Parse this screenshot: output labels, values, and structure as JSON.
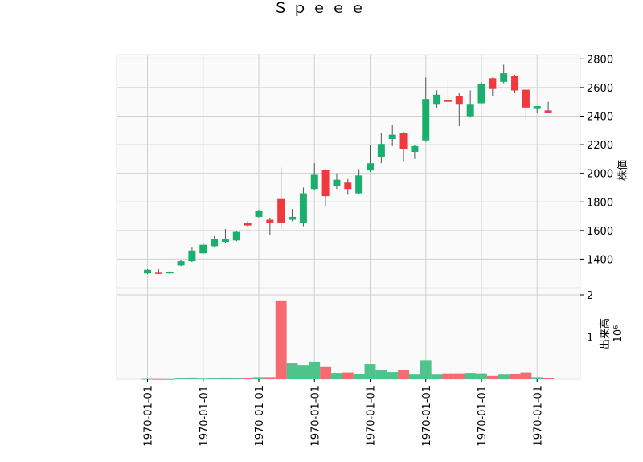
{
  "chart_data": {
    "type": "candlestick",
    "title": "Ｓｐｅｅｅ",
    "price_ylabel": "株価",
    "volume_ylabel": "出来高",
    "volume_scale_label": "10⁶",
    "price_ylim": [
      1200,
      2830
    ],
    "price_yticks": [
      "1400",
      "1600",
      "1800",
      "2000",
      "2200",
      "2400",
      "2600",
      "2800"
    ],
    "price_ytick_values": [
      1400,
      1600,
      1800,
      2000,
      2200,
      2400,
      2600,
      2800
    ],
    "volume_ylim": [
      0,
      2.0
    ],
    "volume_yticks": [
      "1",
      "2"
    ],
    "volume_ytick_values": [
      1,
      2
    ],
    "x_tick_labels": [
      "1970-01-01",
      "1970-01-01",
      "1970-01-01",
      "1970-01-01",
      "1970-01-01",
      "1970-01-01",
      "1970-01-01",
      "1970-01-01"
    ],
    "x_tick_indices": [
      0,
      5,
      10,
      15,
      20,
      25,
      30,
      35
    ],
    "colors": {
      "up": "#1aaf6c",
      "down": "#f0383e",
      "up_volume": "#4dc48c",
      "down_volume": "#f56b70",
      "grid": "#d0d0d0",
      "background": "#fafafa"
    },
    "candles": [
      {
        "o": 1300,
        "h": 1330,
        "l": 1295,
        "c": 1325,
        "v": 0.01
      },
      {
        "o": 1305,
        "h": 1330,
        "l": 1295,
        "c": 1300,
        "v": 0.005
      },
      {
        "o": 1300,
        "h": 1315,
        "l": 1295,
        "c": 1310,
        "v": 0.005
      },
      {
        "o": 1355,
        "h": 1395,
        "l": 1350,
        "c": 1385,
        "v": 0.03
      },
      {
        "o": 1385,
        "h": 1480,
        "l": 1380,
        "c": 1460,
        "v": 0.04
      },
      {
        "o": 1440,
        "h": 1510,
        "l": 1435,
        "c": 1500,
        "v": 0.015
      },
      {
        "o": 1490,
        "h": 1560,
        "l": 1485,
        "c": 1540,
        "v": 0.03
      },
      {
        "o": 1520,
        "h": 1610,
        "l": 1510,
        "c": 1540,
        "v": 0.04
      },
      {
        "o": 1530,
        "h": 1595,
        "l": 1525,
        "c": 1590,
        "v": 0.02
      },
      {
        "o": 1655,
        "h": 1665,
        "l": 1625,
        "c": 1635,
        "v": 0.04
      },
      {
        "o": 1695,
        "h": 1745,
        "l": 1690,
        "c": 1740,
        "v": 0.05
      },
      {
        "o": 1675,
        "h": 1690,
        "l": 1570,
        "c": 1650,
        "v": 0.05
      },
      {
        "o": 1820,
        "h": 2040,
        "l": 1610,
        "c": 1650,
        "v": 1.87
      },
      {
        "o": 1675,
        "h": 1750,
        "l": 1665,
        "c": 1695,
        "v": 0.38
      },
      {
        "o": 1650,
        "h": 1900,
        "l": 1630,
        "c": 1860,
        "v": 0.34
      },
      {
        "o": 1890,
        "h": 2070,
        "l": 1880,
        "c": 1990,
        "v": 0.42
      },
      {
        "o": 2025,
        "h": 2030,
        "l": 1770,
        "c": 1840,
        "v": 0.29
      },
      {
        "o": 1910,
        "h": 2000,
        "l": 1890,
        "c": 1955,
        "v": 0.15
      },
      {
        "o": 1935,
        "h": 1960,
        "l": 1850,
        "c": 1890,
        "v": 0.16
      },
      {
        "o": 1860,
        "h": 2030,
        "l": 1855,
        "c": 1985,
        "v": 0.13
      },
      {
        "o": 2020,
        "h": 2200,
        "l": 2010,
        "c": 2070,
        "v": 0.36
      },
      {
        "o": 2115,
        "h": 2280,
        "l": 2070,
        "c": 2205,
        "v": 0.22
      },
      {
        "o": 2240,
        "h": 2340,
        "l": 2190,
        "c": 2270,
        "v": 0.17
      },
      {
        "o": 2280,
        "h": 2290,
        "l": 2080,
        "c": 2170,
        "v": 0.22
      },
      {
        "o": 2150,
        "h": 2200,
        "l": 2100,
        "c": 2190,
        "v": 0.11
      },
      {
        "o": 2230,
        "h": 2670,
        "l": 2220,
        "c": 2520,
        "v": 0.45
      },
      {
        "o": 2480,
        "h": 2580,
        "l": 2460,
        "c": 2550,
        "v": 0.11
      },
      {
        "o": 2510,
        "h": 2650,
        "l": 2440,
        "c": 2500,
        "v": 0.14
      },
      {
        "o": 2540,
        "h": 2560,
        "l": 2330,
        "c": 2480,
        "v": 0.14
      },
      {
        "o": 2400,
        "h": 2580,
        "l": 2390,
        "c": 2480,
        "v": 0.15
      },
      {
        "o": 2490,
        "h": 2640,
        "l": 2480,
        "c": 2625,
        "v": 0.14
      },
      {
        "o": 2665,
        "h": 2670,
        "l": 2540,
        "c": 2590,
        "v": 0.08
      },
      {
        "o": 2640,
        "h": 2760,
        "l": 2630,
        "c": 2700,
        "v": 0.11
      },
      {
        "o": 2680,
        "h": 2690,
        "l": 2560,
        "c": 2580,
        "v": 0.12
      },
      {
        "o": 2585,
        "h": 2590,
        "l": 2370,
        "c": 2460,
        "v": 0.16
      },
      {
        "o": 2450,
        "h": 2470,
        "l": 2420,
        "c": 2470,
        "v": 0.05
      },
      {
        "o": 2440,
        "h": 2500,
        "l": 2420,
        "c": 2420,
        "v": 0.03
      }
    ]
  }
}
